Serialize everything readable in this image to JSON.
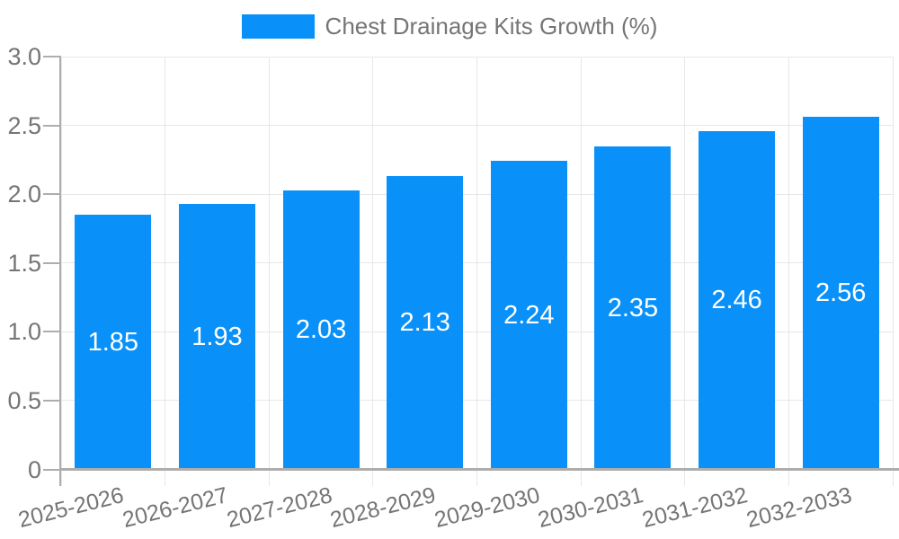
{
  "chart_data": {
    "type": "bar",
    "title": "",
    "legend": {
      "label": "Chest Drainage Kits Growth (%)",
      "position": "top-center"
    },
    "categories": [
      "2025-2026",
      "2026-2027",
      "2027-2028",
      "2028-2029",
      "2029-2030",
      "2030-2031",
      "2031-2032",
      "2032-2033"
    ],
    "values": [
      1.85,
      1.93,
      2.03,
      2.13,
      2.24,
      2.35,
      2.46,
      2.56
    ],
    "value_labels": [
      "1.85",
      "1.93",
      "2.03",
      "2.13",
      "2.24",
      "2.35",
      "2.46",
      "2.56"
    ],
    "xlabel": "",
    "ylabel": "",
    "ylim": [
      0,
      3.0
    ],
    "yticks": {
      "values": [
        0,
        0.5,
        1.0,
        1.5,
        2.0,
        2.5,
        3.0
      ],
      "labels": [
        "0",
        "0.5",
        "1.0",
        "1.5",
        "2.0",
        "2.5",
        "3.0"
      ]
    },
    "grid": true,
    "colors": {
      "bar": "#0991f9",
      "grid": "#e7e7e7",
      "axis": "#adadad",
      "tick_label": "#757575",
      "value_label": "#ffffff",
      "background": "#ffffff"
    }
  }
}
